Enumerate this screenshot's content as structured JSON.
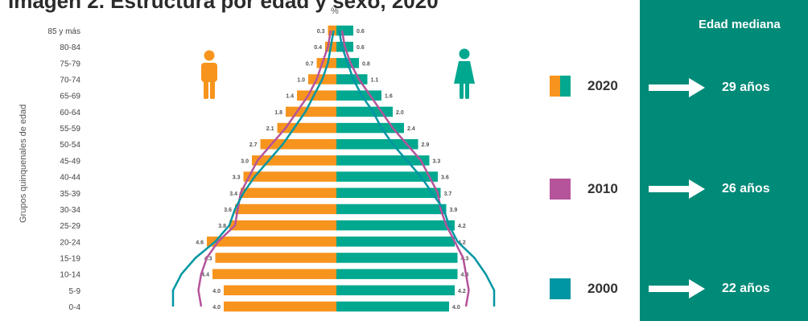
{
  "title": "Imagen 2. Estructura por edad y sexo, 2020",
  "percent_symbol": "%",
  "y_axis_label": "Grupos quinquenales de edad",
  "legend": [
    {
      "year": "2020",
      "colors": [
        "#f7941d",
        "#00a88f"
      ]
    },
    {
      "year": "2010",
      "colors": [
        "#b5539b"
      ]
    },
    {
      "year": "2000",
      "colors": [
        "#0096a3"
      ]
    }
  ],
  "median_panel": {
    "title": "Edad mediana",
    "values": [
      "29 años",
      "26 años",
      "22 años"
    ]
  },
  "colors": {
    "male": "#f7941d",
    "female": "#00a88f",
    "line_2010": "#b5539b",
    "line_2000": "#0096a3",
    "panel": "#008a78"
  },
  "icons": {
    "male": "man-icon",
    "female": "woman-icon"
  },
  "chart_data": {
    "type": "bar",
    "orientation": "horizontal-pyramid",
    "categories": [
      "0-4",
      "5-9",
      "10-14",
      "15-19",
      "20-24",
      "25-29",
      "30-34",
      "35-39",
      "40-44",
      "45-49",
      "50-54",
      "55-59",
      "60-64",
      "65-69",
      "70-74",
      "75-79",
      "80-84",
      "85 y más"
    ],
    "series": [
      {
        "name": "Hombres 2020",
        "values": [
          4.0,
          4.0,
          4.4,
          4.3,
          4.6,
          3.8,
          3.6,
          3.4,
          3.3,
          3.0,
          2.7,
          2.1,
          1.8,
          1.4,
          1.0,
          0.7,
          0.4,
          0.3
        ]
      },
      {
        "name": "Mujeres 2020",
        "values": [
          4.0,
          4.2,
          4.3,
          4.3,
          4.2,
          4.2,
          3.9,
          3.7,
          3.6,
          3.3,
          2.9,
          2.4,
          2.0,
          1.6,
          1.1,
          0.8,
          0.6,
          0.6
        ]
      },
      {
        "name": "2010",
        "men": [
          4.8,
          4.9,
          4.8,
          4.6,
          4.2,
          3.6,
          3.5,
          3.4,
          3.1,
          2.8,
          2.3,
          1.8,
          1.4,
          1.0,
          0.7,
          0.5,
          0.3,
          0.2
        ],
        "women": [
          4.6,
          4.7,
          4.6,
          4.5,
          4.2,
          3.9,
          3.7,
          3.6,
          3.3,
          3.0,
          2.5,
          2.0,
          1.6,
          1.2,
          0.8,
          0.5,
          0.3,
          0.2
        ]
      },
      {
        "name": "2000",
        "men": [
          5.8,
          5.8,
          5.5,
          5.0,
          4.3,
          3.8,
          3.6,
          3.3,
          2.9,
          2.4,
          1.9,
          1.5,
          1.1,
          0.8,
          0.5,
          0.3,
          0.2,
          0.1
        ],
        "women": [
          5.6,
          5.6,
          5.3,
          4.9,
          4.3,
          4.0,
          3.8,
          3.4,
          3.0,
          2.5,
          2.0,
          1.6,
          1.3,
          0.9,
          0.6,
          0.4,
          0.2,
          0.1
        ]
      }
    ],
    "value_labels_men": [
      "4.0",
      "4.0",
      "4.4",
      "4.3",
      "4.6",
      "3.8",
      "3.6",
      "3.4",
      "3.3",
      "3.0",
      "2.7",
      "2.1",
      "1.8",
      "1.4",
      "1.0",
      "0.7",
      "0.4",
      "0.3"
    ],
    "value_labels_women": [
      "4.0",
      "4.2",
      "4.3",
      "4.3",
      "4.2",
      "4.2",
      "3.9",
      "3.7",
      "3.6",
      "3.3",
      "2.9",
      "2.4",
      "2.0",
      "1.6",
      "1.1",
      "0.8",
      "0.6",
      "0.6"
    ],
    "xlim": [
      0,
      6
    ],
    "xlabel": "%",
    "ylabel": "Grupos quinquenales de edad",
    "grid": false
  }
}
